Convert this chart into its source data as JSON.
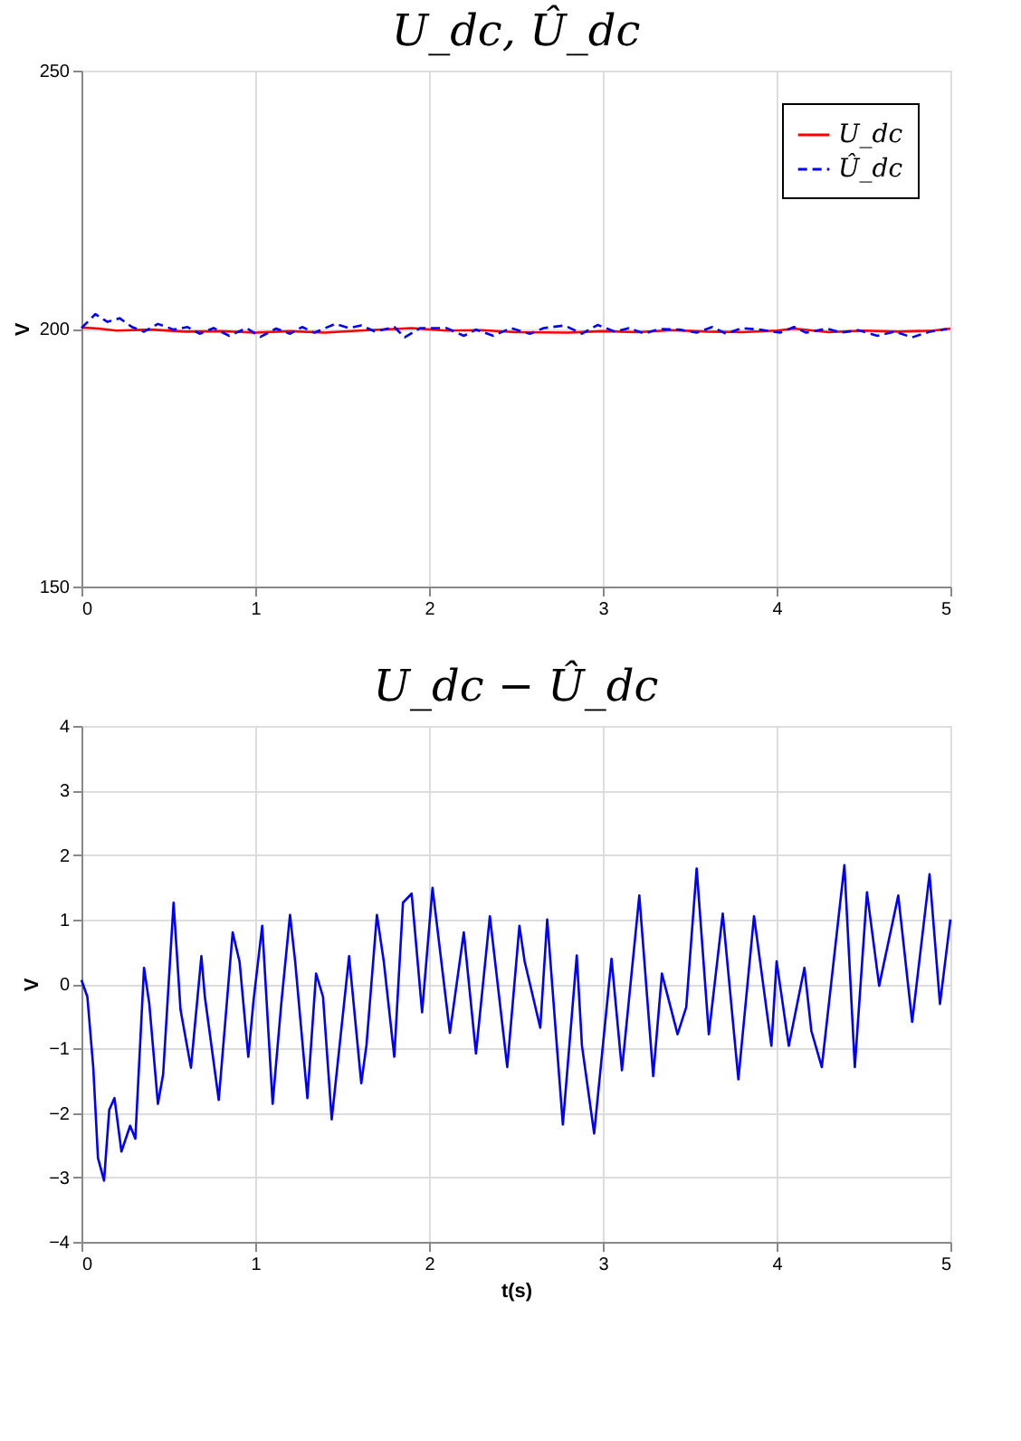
{
  "chart_data": [
    {
      "type": "line",
      "title": "U_dc, Û_dc",
      "ylabel": "V",
      "xlim": [
        0,
        5
      ],
      "xticks": [
        0,
        1,
        2,
        3,
        4,
        5
      ],
      "ylim": [
        150,
        250
      ],
      "yticks": [
        150,
        200,
        250
      ],
      "grid": true,
      "legend": "top right",
      "series": [
        {
          "name": "U_dc",
          "color": "#ff0000",
          "line_style": "solid",
          "x": [
            0,
            0.1,
            0.2,
            0.4,
            0.6,
            0.8,
            1.0,
            1.2,
            1.4,
            1.6,
            1.9,
            2.1,
            2.3,
            2.5,
            2.8,
            3.0,
            3.2,
            3.4,
            3.6,
            3.8,
            4.0,
            4.1,
            4.3,
            4.5,
            4.7,
            4.9,
            5.0
          ],
          "values": [
            200.2,
            200.0,
            199.6,
            199.8,
            199.4,
            199.5,
            199.2,
            199.5,
            199.2,
            199.6,
            200.1,
            199.6,
            199.7,
            199.3,
            199.2,
            199.5,
            199.3,
            199.7,
            199.4,
            199.3,
            199.6,
            200.0,
            199.3,
            199.6,
            199.4,
            199.6,
            200.0
          ]
        },
        {
          "name": "Û_dc",
          "color": "#0000ff",
          "line_style": "dashed",
          "x": [
            0,
            0.08,
            0.15,
            0.22,
            0.29,
            0.36,
            0.44,
            0.53,
            0.61,
            0.68,
            0.76,
            0.85,
            0.95,
            1.03,
            1.12,
            1.2,
            1.27,
            1.34,
            1.46,
            1.54,
            1.61,
            1.69,
            1.8,
            1.86,
            1.95,
            2.1,
            2.2,
            2.27,
            2.37,
            2.47,
            2.58,
            2.66,
            2.78,
            2.88,
            2.97,
            3.07,
            3.15,
            3.24,
            3.32,
            3.44,
            3.54,
            3.63,
            3.71,
            3.8,
            3.9,
            4.02,
            4.1,
            4.17,
            4.29,
            4.37,
            4.47,
            4.58,
            4.68,
            4.78,
            4.88,
            4.98
          ],
          "values": [
            200.1,
            202.8,
            201.3,
            202.0,
            200.3,
            199.4,
            200.9,
            199.8,
            200.3,
            199.0,
            200.1,
            198.6,
            200.1,
            198.4,
            200.0,
            199.0,
            200.3,
            199.2,
            200.9,
            200.1,
            200.6,
            199.4,
            200.3,
            198.3,
            200.1,
            200.1,
            198.6,
            199.8,
            198.6,
            200.1,
            199.0,
            200.1,
            200.6,
            199.0,
            200.7,
            199.4,
            200.1,
            199.0,
            199.9,
            199.8,
            199.2,
            200.3,
            199.0,
            200.1,
            199.8,
            199.2,
            200.3,
            199.2,
            200.0,
            199.2,
            199.7,
            198.6,
            199.4,
            198.3,
            199.4,
            199.9
          ]
        }
      ]
    },
    {
      "type": "line",
      "title": "U_dc − Û_dc",
      "xlabel": "t(s)",
      "ylabel": "V",
      "xlim": [
        0,
        5
      ],
      "xticks": [
        0,
        1,
        2,
        3,
        4,
        5
      ],
      "ylim": [
        -4,
        4
      ],
      "yticks": [
        -4,
        -3,
        -2,
        -1,
        0,
        1,
        2,
        3,
        4
      ],
      "grid": true,
      "series": [
        {
          "color": "#0000ff",
          "line_style": "solid",
          "x": [
            0,
            0.034,
            0.068,
            0.095,
            0.13,
            0.16,
            0.19,
            0.23,
            0.28,
            0.31,
            0.36,
            0.39,
            0.44,
            0.47,
            0.53,
            0.57,
            0.63,
            0.69,
            0.71,
            0.79,
            0.87,
            0.91,
            0.96,
            0.99,
            1.04,
            1.1,
            1.15,
            1.2,
            1.23,
            1.3,
            1.35,
            1.39,
            1.44,
            1.54,
            1.61,
            1.64,
            1.7,
            1.74,
            1.8,
            1.85,
            1.9,
            1.96,
            2.02,
            2.12,
            2.2,
            2.27,
            2.35,
            2.45,
            2.52,
            2.55,
            2.64,
            2.68,
            2.77,
            2.85,
            2.88,
            2.95,
            3.05,
            3.11,
            3.21,
            3.29,
            3.34,
            3.43,
            3.48,
            3.54,
            3.61,
            3.69,
            3.78,
            3.87,
            3.97,
            4.0,
            4.07,
            4.16,
            4.2,
            4.26,
            4.39,
            4.45,
            4.52,
            4.59,
            4.7,
            4.78,
            4.88,
            4.94,
            5.0
          ],
          "values": [
            0.06,
            -0.2,
            -1.3,
            -2.7,
            -3.05,
            -1.95,
            -1.77,
            -2.6,
            -2.2,
            -2.4,
            0.25,
            -0.3,
            -1.86,
            -1.4,
            1.26,
            -0.4,
            -1.3,
            0.43,
            -0.2,
            -1.8,
            0.8,
            0.34,
            -1.13,
            -0.26,
            0.9,
            -1.86,
            -0.3,
            1.07,
            0.34,
            -1.77,
            0.16,
            -0.2,
            -2.1,
            0.43,
            -1.54,
            -0.95,
            1.07,
            0.34,
            -1.13,
            1.26,
            1.4,
            -0.44,
            1.49,
            -0.76,
            0.8,
            -1.08,
            1.05,
            -1.29,
            0.9,
            0.35,
            -0.68,
            1.0,
            -2.18,
            0.44,
            -0.96,
            -2.32,
            0.39,
            -1.34,
            1.37,
            -1.43,
            0.16,
            -0.78,
            -0.36,
            1.79,
            -0.78,
            1.09,
            -1.48,
            1.05,
            -0.96,
            0.35,
            -0.96,
            0.25,
            -0.73,
            -1.29,
            1.84,
            -1.29,
            1.42,
            -0.03,
            1.37,
            -0.59,
            1.7,
            -0.31,
            1.0
          ]
        }
      ]
    }
  ]
}
